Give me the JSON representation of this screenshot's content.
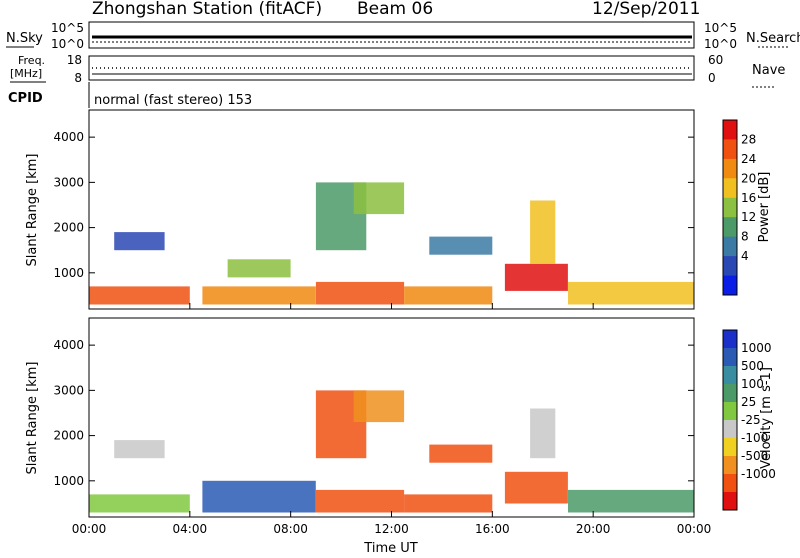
{
  "header": {
    "station": "Zhongshan Station (fitACF)",
    "beam": "Beam 06",
    "date": "12/Sep/2011"
  },
  "sky_panel": {
    "left_label": "N.Sky",
    "right_label": "N.Search",
    "left_ticks": [
      "10^5",
      "10^0"
    ],
    "right_ticks": [
      "10^5",
      "10^0"
    ]
  },
  "freq_panel": {
    "left_label_1": "Freq.",
    "left_label_2": "[MHz]",
    "right_label": "Nave",
    "left_ticks": [
      "18",
      "8"
    ],
    "right_ticks": [
      "60",
      "0"
    ]
  },
  "cpid": {
    "label": "CPID",
    "text": "normal (fast stereo) 153"
  },
  "chart_data": [
    {
      "type": "heatmap",
      "name": "power",
      "ylabel": "Slant Range [km]",
      "ylim": [
        200,
        4600
      ],
      "yticks": [
        "1000",
        "2000",
        "3000",
        "4000"
      ],
      "xlim_hours": [
        0,
        24
      ],
      "colorbar": {
        "label": "Power [dB]",
        "ticks": [
          "4",
          "8",
          "12",
          "16",
          "20",
          "24",
          "28"
        ],
        "colors": [
          "#0a1ee6",
          "#2a48b4",
          "#3a7aa4",
          "#4c9a68",
          "#8cc040",
          "#f0c020",
          "#f08a10",
          "#f05010",
          "#e01010"
        ]
      },
      "patches": [
        {
          "t0": 0.0,
          "t1": 4.0,
          "r0": 300,
          "r1": 700,
          "level": 7
        },
        {
          "t0": 1.0,
          "t1": 3.0,
          "r0": 1500,
          "r1": 1900,
          "level": 1
        },
        {
          "t0": 4.5,
          "t1": 9.0,
          "r0": 300,
          "r1": 700,
          "level": 6
        },
        {
          "t0": 5.5,
          "t1": 8.0,
          "r0": 900,
          "r1": 1300,
          "level": 4
        },
        {
          "t0": 9.0,
          "t1": 12.5,
          "r0": 300,
          "r1": 800,
          "level": 7
        },
        {
          "t0": 9.0,
          "t1": 11.0,
          "r0": 1500,
          "r1": 3000,
          "level": 3
        },
        {
          "t0": 10.5,
          "t1": 12.5,
          "r0": 2300,
          "r1": 3000,
          "level": 4
        },
        {
          "t0": 12.5,
          "t1": 16.0,
          "r0": 300,
          "r1": 700,
          "level": 6
        },
        {
          "t0": 13.5,
          "t1": 16.0,
          "r0": 1400,
          "r1": 1800,
          "level": 2
        },
        {
          "t0": 16.5,
          "t1": 19.0,
          "r0": 600,
          "r1": 1200,
          "level": 8
        },
        {
          "t0": 17.5,
          "t1": 18.5,
          "r0": 1200,
          "r1": 2600,
          "level": 5
        },
        {
          "t0": 19.0,
          "t1": 24.0,
          "r0": 300,
          "r1": 800,
          "level": 5
        }
      ]
    },
    {
      "type": "heatmap",
      "name": "velocity",
      "ylabel": "Slant Range [km]",
      "ylim": [
        200,
        4600
      ],
      "yticks": [
        "1000",
        "2000",
        "3000",
        "4000"
      ],
      "xlim_hours": [
        0,
        24
      ],
      "xticks": [
        "00:00",
        "04:00",
        "08:00",
        "12:00",
        "16:00",
        "20:00",
        "00:00"
      ],
      "xlabel": "Time UT",
      "colorbar": {
        "label": "Velocity [m s-1]",
        "ticks": [
          "1000",
          "500",
          "100",
          "25",
          "-25",
          "-100",
          "-500",
          "-1000"
        ],
        "colors": [
          "#1a30c8",
          "#2a5ab4",
          "#3a8ca0",
          "#4c9a68",
          "#80c840",
          "#c8c8c8",
          "#f0d020",
          "#f09020",
          "#f05010",
          "#e01010"
        ]
      },
      "patches": [
        {
          "t0": 0.0,
          "t1": 4.0,
          "r0": 300,
          "r1": 700,
          "level": 4
        },
        {
          "t0": 1.0,
          "t1": 3.0,
          "r0": 1500,
          "r1": 1900,
          "level": 5
        },
        {
          "t0": 4.5,
          "t1": 9.0,
          "r0": 300,
          "r1": 1000,
          "level": 1
        },
        {
          "t0": 9.0,
          "t1": 12.5,
          "r0": 300,
          "r1": 800,
          "level": 8
        },
        {
          "t0": 9.0,
          "t1": 11.0,
          "r0": 1500,
          "r1": 3000,
          "level": 8
        },
        {
          "t0": 10.5,
          "t1": 12.5,
          "r0": 2300,
          "r1": 3000,
          "level": 7
        },
        {
          "t0": 12.5,
          "t1": 16.0,
          "r0": 300,
          "r1": 700,
          "level": 8
        },
        {
          "t0": 13.5,
          "t1": 16.0,
          "r0": 1400,
          "r1": 1800,
          "level": 8
        },
        {
          "t0": 16.5,
          "t1": 19.0,
          "r0": 500,
          "r1": 1200,
          "level": 8
        },
        {
          "t0": 17.5,
          "t1": 18.5,
          "r0": 1500,
          "r1": 2600,
          "level": 5
        },
        {
          "t0": 19.0,
          "t1": 24.0,
          "r0": 300,
          "r1": 800,
          "level": 3
        }
      ]
    }
  ]
}
